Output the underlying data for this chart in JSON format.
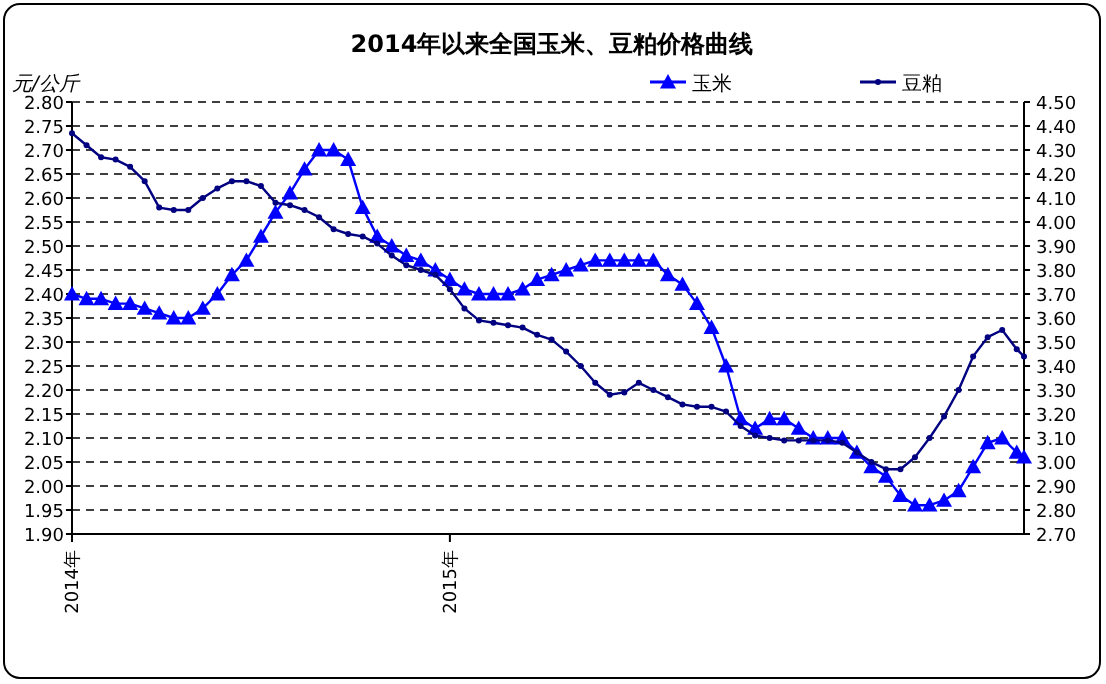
{
  "chart_data": {
    "type": "line",
    "title": "2014年以来全国玉米、豆粕价格曲线",
    "ylabel": "元/公斤",
    "x": [
      "2014-01-03",
      "2014-01-17",
      "2014-01-31",
      "2014-02-14",
      "2014-02-28",
      "2014-03-14",
      "2014-03-28",
      "2014-04-11",
      "2014-04-25",
      "2014-05-09",
      "2014-05-23",
      "2014-06-06",
      "2014-06-20",
      "2014-07-04",
      "2014-07-18",
      "2014-08-01",
      "2014-08-15",
      "2014-08-29",
      "2014-09-12",
      "2014-09-26",
      "2014-10-10",
      "2014-10-24",
      "2014-11-07",
      "2014-11-21",
      "2014-12-05",
      "2014-12-19",
      "2015-01-02",
      "2015-01-16",
      "2015-01-30",
      "2015-02-13",
      "2015-02-27",
      "2015-03-13",
      "2015-03-27",
      "2015-04-10",
      "2015-04-24",
      "2015-05-08",
      "2015-05-22",
      "2015-06-05",
      "2015-06-19",
      "2015-07-03",
      "2015-07-17",
      "2015-07-31",
      "2015-08-14",
      "2015-08-28",
      "2015-09-11",
      "2015-09-25",
      "2015-10-09",
      "2015-10-23",
      "2015-11-06",
      "2015-11-20",
      "2015-12-04",
      "2015-12-18",
      "2016-01-01",
      "2016-01-15",
      "2016-01-29",
      "2016-02-12",
      "2016-02-26",
      "2016-03-11",
      "2016-03-25",
      "2016-04-08",
      "2016-04-22",
      "2016-05-06",
      "2016-05-20",
      "2016-06-03",
      "2016-06-17",
      "2016-07-01",
      "2016-07-08"
    ],
    "xlim": [
      "2014-01-03",
      "2016-07-08"
    ],
    "xticks": [
      {
        "value": "2014-01-03",
        "label": "2014年"
      },
      {
        "value": "2015-01-02",
        "label": "2015年"
      }
    ],
    "series": [
      {
        "name": "玉米",
        "color": "#0000ff",
        "marker": "triangle",
        "values": [
          2.4,
          2.39,
          2.39,
          2.38,
          2.38,
          2.37,
          2.36,
          2.35,
          2.35,
          2.37,
          2.4,
          2.44,
          2.47,
          2.52,
          2.57,
          2.61,
          2.66,
          2.7,
          2.7,
          2.68,
          2.58,
          2.52,
          2.5,
          2.48,
          2.47,
          2.45,
          2.43,
          2.41,
          2.4,
          2.4,
          2.4,
          2.41,
          2.43,
          2.44,
          2.45,
          2.46,
          2.47,
          2.47,
          2.47,
          2.47,
          2.47,
          2.44,
          2.42,
          2.38,
          2.33,
          2.25,
          2.14,
          2.12,
          2.14,
          2.14,
          2.12,
          2.1,
          2.1,
          2.1,
          2.07,
          2.04,
          2.02,
          1.98,
          1.96,
          1.96,
          1.97,
          1.99,
          2.04,
          2.09,
          2.1,
          2.07,
          2.06
        ]
      },
      {
        "name": "豆粕",
        "color": "#000080",
        "marker": "circle",
        "axis": "y2",
        "values": [
          4.37,
          4.32,
          4.27,
          4.26,
          4.23,
          4.17,
          4.06,
          4.05,
          4.05,
          4.1,
          4.14,
          4.17,
          4.17,
          4.15,
          4.08,
          4.07,
          4.05,
          4.02,
          3.97,
          3.95,
          3.94,
          3.91,
          3.86,
          3.82,
          3.8,
          3.78,
          3.72,
          3.64,
          3.59,
          3.58,
          3.57,
          3.56,
          3.53,
          3.51,
          3.46,
          3.4,
          3.33,
          3.28,
          3.29,
          3.33,
          3.3,
          3.27,
          3.24,
          3.23,
          3.23,
          3.21,
          3.15,
          3.11,
          3.1,
          3.09,
          3.09,
          3.09,
          3.09,
          3.08,
          3.04,
          3.0,
          2.97,
          2.97,
          3.02,
          3.1,
          3.19,
          3.3,
          3.44,
          3.52,
          3.55,
          3.47,
          3.44
        ]
      }
    ],
    "ylim": [
      1.9,
      2.8
    ],
    "yticks": [
      {
        "value": 1.9,
        "label": "1.90"
      },
      {
        "value": 1.95,
        "label": "1.95"
      },
      {
        "value": 2.0,
        "label": "2.00"
      },
      {
        "value": 2.05,
        "label": "2.05"
      },
      {
        "value": 2.1,
        "label": "2.10"
      },
      {
        "value": 2.15,
        "label": "2.15"
      },
      {
        "value": 2.2,
        "label": "2.20"
      },
      {
        "value": 2.25,
        "label": "2.25"
      },
      {
        "value": 2.3,
        "label": "2.30"
      },
      {
        "value": 2.35,
        "label": "2.35"
      },
      {
        "value": 2.4,
        "label": "2.40"
      },
      {
        "value": 2.45,
        "label": "2.45"
      },
      {
        "value": 2.5,
        "label": "2.50"
      },
      {
        "value": 2.55,
        "label": "2.55"
      },
      {
        "value": 2.6,
        "label": "2.60"
      },
      {
        "value": 2.65,
        "label": "2.65"
      },
      {
        "value": 2.7,
        "label": "2.70"
      },
      {
        "value": 2.75,
        "label": "2.75"
      },
      {
        "value": 2.8,
        "label": "2.80"
      }
    ],
    "y2lim": [
      2.7,
      4.5
    ],
    "y2ticks": [
      {
        "value": 2.7,
        "label": "2.70"
      },
      {
        "value": 2.8,
        "label": "2.80"
      },
      {
        "value": 2.9,
        "label": "2.90"
      },
      {
        "value": 3.0,
        "label": "3.00"
      },
      {
        "value": 3.1,
        "label": "3.10"
      },
      {
        "value": 3.2,
        "label": "3.20"
      },
      {
        "value": 3.3,
        "label": "3.30"
      },
      {
        "value": 3.4,
        "label": "3.40"
      },
      {
        "value": 3.5,
        "label": "3.50"
      },
      {
        "value": 3.6,
        "label": "3.60"
      },
      {
        "value": 3.7,
        "label": "3.70"
      },
      {
        "value": 3.8,
        "label": "3.80"
      },
      {
        "value": 3.9,
        "label": "3.90"
      },
      {
        "value": 4.0,
        "label": "4.00"
      },
      {
        "value": 4.1,
        "label": "4.10"
      },
      {
        "value": 4.2,
        "label": "4.20"
      },
      {
        "value": 4.3,
        "label": "4.30"
      },
      {
        "value": 4.4,
        "label": "4.40"
      },
      {
        "value": 4.5,
        "label": "4.50"
      }
    ],
    "grid": "y",
    "legend": "top right",
    "line_style": "solid"
  }
}
